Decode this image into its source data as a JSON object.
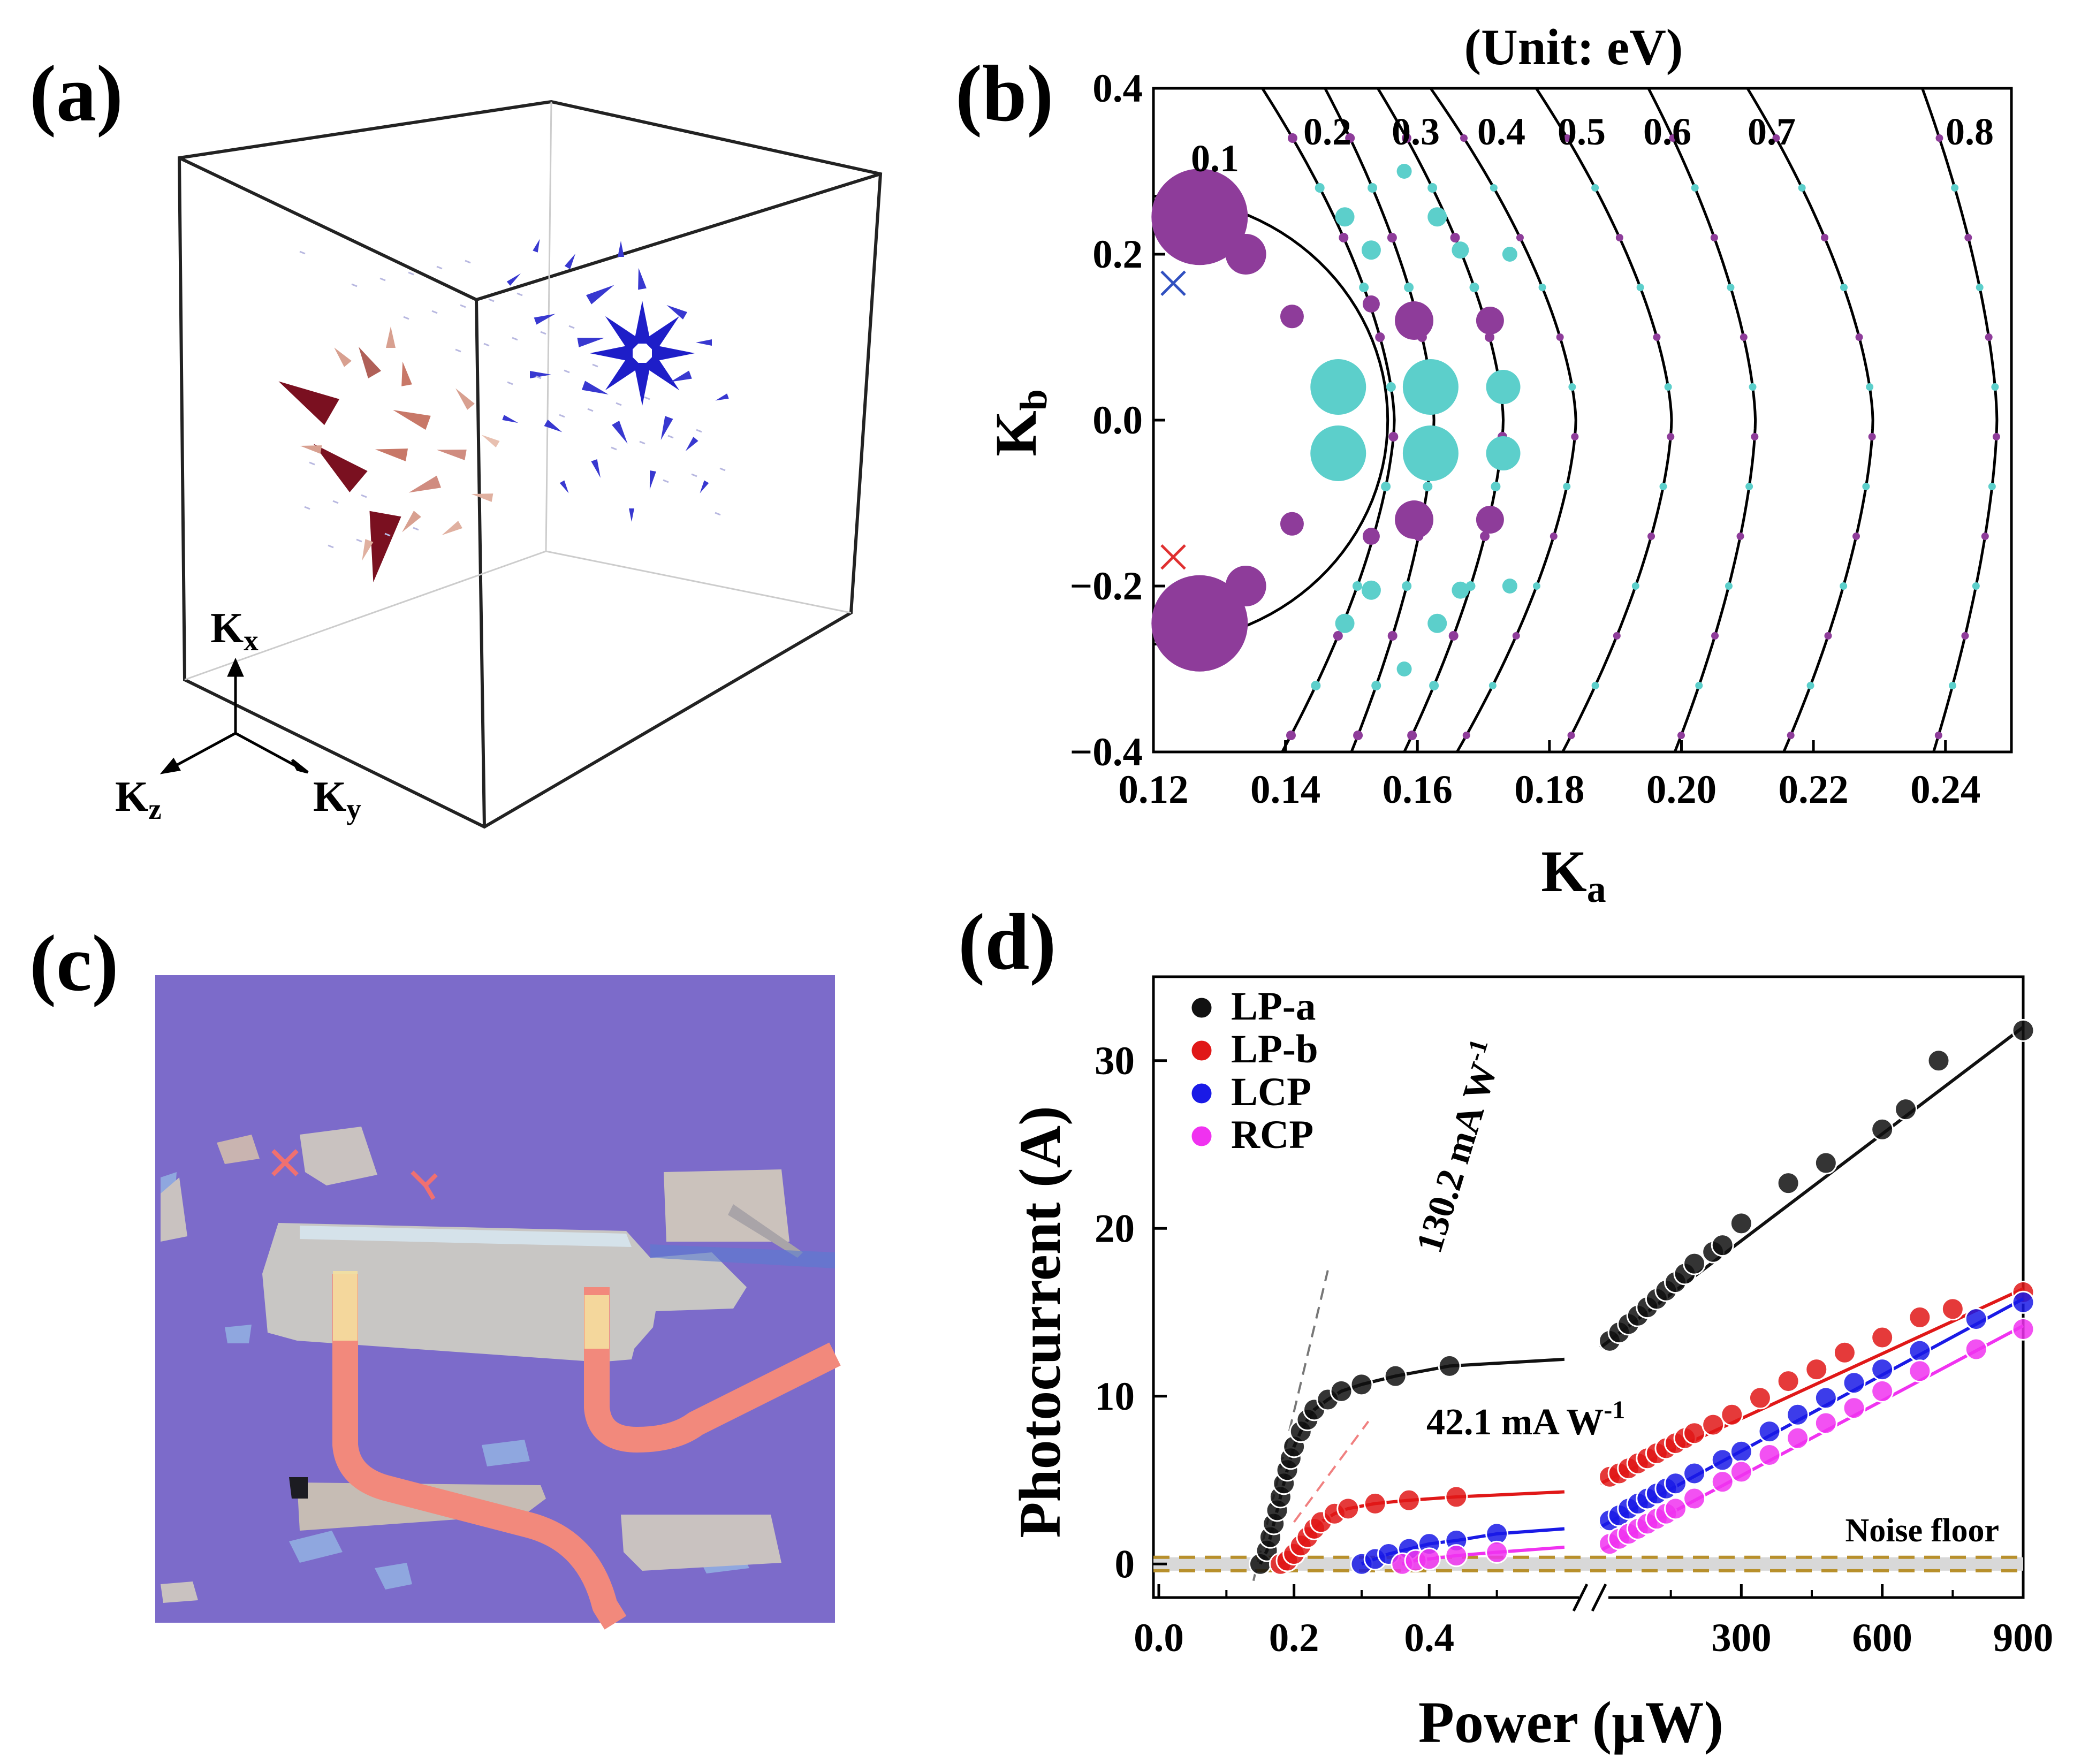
{
  "panels": {
    "a": {
      "label": "(a)",
      "axes": {
        "x": "K",
        "x_sub": "x",
        "y": "K",
        "y_sub": "y",
        "z": "K",
        "z_sub": "z"
      }
    },
    "b": {
      "label": "(b)",
      "title": "(Unit: eV)"
    },
    "c": {
      "label": "(c)"
    },
    "d": {
      "label": "(d)",
      "noise_label": "Noise floor",
      "ann1": "130.2 mA W",
      "ann1_sup": "-1",
      "ann2": "42.1 mA W",
      "ann2_sup": "-1"
    }
  },
  "colors": {
    "purple": "#8e3c9a",
    "cyan": "#5ccfcb",
    "blue_vec": "#1e1ec8",
    "red_vec": "#7a1020",
    "lp_a": "#111111",
    "lp_b": "#e01818",
    "lcp": "#1a1ae6",
    "rcp": "#f032f0",
    "substrate": "#7a68c8",
    "electrode": "#f2897c",
    "noise": "#b8902c"
  },
  "chart_data": [
    {
      "type": "line",
      "panel": "b",
      "title": "(Unit: eV)",
      "xlabel": "K",
      "xlabel_sub": "a",
      "ylabel": "K",
      "ylabel_sub": "b",
      "xlim": [
        0.12,
        0.25
      ],
      "ylim": [
        -0.4,
        0.4
      ],
      "xticks": [
        "0.12",
        "0.14",
        "0.16",
        "0.18",
        "0.20",
        "0.22",
        "0.24"
      ],
      "yticks": [
        "0.4",
        "0.2",
        "0.0",
        "−0.2",
        "−0.4"
      ],
      "contour_labels": [
        "0.1",
        "0.2",
        "0.3",
        "0.4",
        "0.5",
        "0.6",
        "0.7",
        "0.8"
      ],
      "markers": [
        {
          "ka": 0.123,
          "kb": 0.165,
          "color": "blue"
        },
        {
          "ka": 0.123,
          "kb": -0.165,
          "color": "red"
        }
      ]
    },
    {
      "type": "scatter",
      "panel": "d",
      "xlabel": "Power (μW)",
      "ylabel": "Photocurrent (A)",
      "xticks_left": [
        "0.0",
        "0.2",
        "0.4"
      ],
      "xticks_right": [
        "300",
        "600",
        "900"
      ],
      "yticks": [
        "0",
        "10",
        "20",
        "30"
      ],
      "ylim": [
        -2,
        35
      ],
      "legend_position": "top-left",
      "series": [
        {
          "name": "LP-a",
          "color": "#111111",
          "left": [
            [
              0.15,
              0.0
            ],
            [
              0.16,
              0.8
            ],
            [
              0.165,
              1.6
            ],
            [
              0.17,
              2.4
            ],
            [
              0.175,
              3.2
            ],
            [
              0.18,
              4.0
            ],
            [
              0.185,
              4.8
            ],
            [
              0.19,
              5.6
            ],
            [
              0.195,
              6.3
            ],
            [
              0.2,
              7.0
            ],
            [
              0.21,
              7.9
            ],
            [
              0.22,
              8.6
            ],
            [
              0.23,
              9.2
            ],
            [
              0.25,
              9.8
            ],
            [
              0.27,
              10.3
            ],
            [
              0.3,
              10.7
            ],
            [
              0.35,
              11.2
            ],
            [
              0.43,
              11.8
            ]
          ],
          "right": [
            [
              20,
              13.3
            ],
            [
              40,
              13.8
            ],
            [
              60,
              14.3
            ],
            [
              80,
              14.8
            ],
            [
              100,
              15.3
            ],
            [
              120,
              15.8
            ],
            [
              140,
              16.3
            ],
            [
              160,
              16.8
            ],
            [
              180,
              17.3
            ],
            [
              200,
              17.9
            ],
            [
              240,
              18.6
            ],
            [
              260,
              19.0
            ],
            [
              300,
              20.3
            ],
            [
              400,
              22.7
            ],
            [
              480,
              23.9
            ],
            [
              600,
              25.9
            ],
            [
              650,
              27.1
            ],
            [
              720,
              30.0
            ],
            [
              900,
              31.8
            ]
          ]
        },
        {
          "name": "LP-b",
          "color": "#e01818",
          "left": [
            [
              0.18,
              0.0
            ],
            [
              0.19,
              0.2
            ],
            [
              0.2,
              0.6
            ],
            [
              0.21,
              1.1
            ],
            [
              0.22,
              1.6
            ],
            [
              0.23,
              2.1
            ],
            [
              0.24,
              2.5
            ],
            [
              0.26,
              3.0
            ],
            [
              0.28,
              3.3
            ],
            [
              0.32,
              3.6
            ],
            [
              0.37,
              3.8
            ],
            [
              0.44,
              4.0
            ]
          ],
          "right": [
            [
              20,
              5.2
            ],
            [
              40,
              5.4
            ],
            [
              60,
              5.7
            ],
            [
              80,
              6.0
            ],
            [
              100,
              6.3
            ],
            [
              120,
              6.6
            ],
            [
              140,
              6.9
            ],
            [
              160,
              7.2
            ],
            [
              180,
              7.5
            ],
            [
              200,
              7.8
            ],
            [
              240,
              8.3
            ],
            [
              280,
              8.9
            ],
            [
              340,
              9.9
            ],
            [
              400,
              10.9
            ],
            [
              460,
              11.6
            ],
            [
              520,
              12.6
            ],
            [
              600,
              13.5
            ],
            [
              680,
              14.7
            ],
            [
              750,
              15.2
            ],
            [
              900,
              16.2
            ]
          ]
        },
        {
          "name": "LCP",
          "color": "#1a1ae6",
          "left": [
            [
              0.3,
              0.0
            ],
            [
              0.32,
              0.3
            ],
            [
              0.34,
              0.6
            ],
            [
              0.37,
              0.9
            ],
            [
              0.4,
              1.2
            ],
            [
              0.44,
              1.4
            ],
            [
              0.5,
              1.8
            ]
          ],
          "right": [
            [
              20,
              2.6
            ],
            [
              40,
              2.9
            ],
            [
              60,
              3.3
            ],
            [
              80,
              3.6
            ],
            [
              100,
              3.9
            ],
            [
              120,
              4.2
            ],
            [
              140,
              4.5
            ],
            [
              160,
              4.8
            ],
            [
              200,
              5.4
            ],
            [
              260,
              6.2
            ],
            [
              300,
              6.7
            ],
            [
              360,
              7.9
            ],
            [
              420,
              8.9
            ],
            [
              480,
              9.9
            ],
            [
              540,
              10.8
            ],
            [
              600,
              11.6
            ],
            [
              680,
              12.7
            ],
            [
              800,
              14.6
            ],
            [
              900,
              15.6
            ]
          ]
        },
        {
          "name": "RCP",
          "color": "#f032f0",
          "left": [
            [
              0.36,
              0.0
            ],
            [
              0.38,
              0.2
            ],
            [
              0.4,
              0.3
            ],
            [
              0.44,
              0.5
            ],
            [
              0.5,
              0.7
            ]
          ],
          "right": [
            [
              20,
              1.2
            ],
            [
              40,
              1.5
            ],
            [
              60,
              1.8
            ],
            [
              80,
              2.1
            ],
            [
              100,
              2.4
            ],
            [
              120,
              2.7
            ],
            [
              140,
              3.0
            ],
            [
              160,
              3.3
            ],
            [
              200,
              3.9
            ],
            [
              260,
              4.9
            ],
            [
              300,
              5.5
            ],
            [
              360,
              6.5
            ],
            [
              420,
              7.5
            ],
            [
              480,
              8.4
            ],
            [
              540,
              9.3
            ],
            [
              600,
              10.3
            ],
            [
              680,
              11.5
            ],
            [
              800,
              12.8
            ],
            [
              900,
              14.0
            ]
          ]
        }
      ]
    }
  ]
}
